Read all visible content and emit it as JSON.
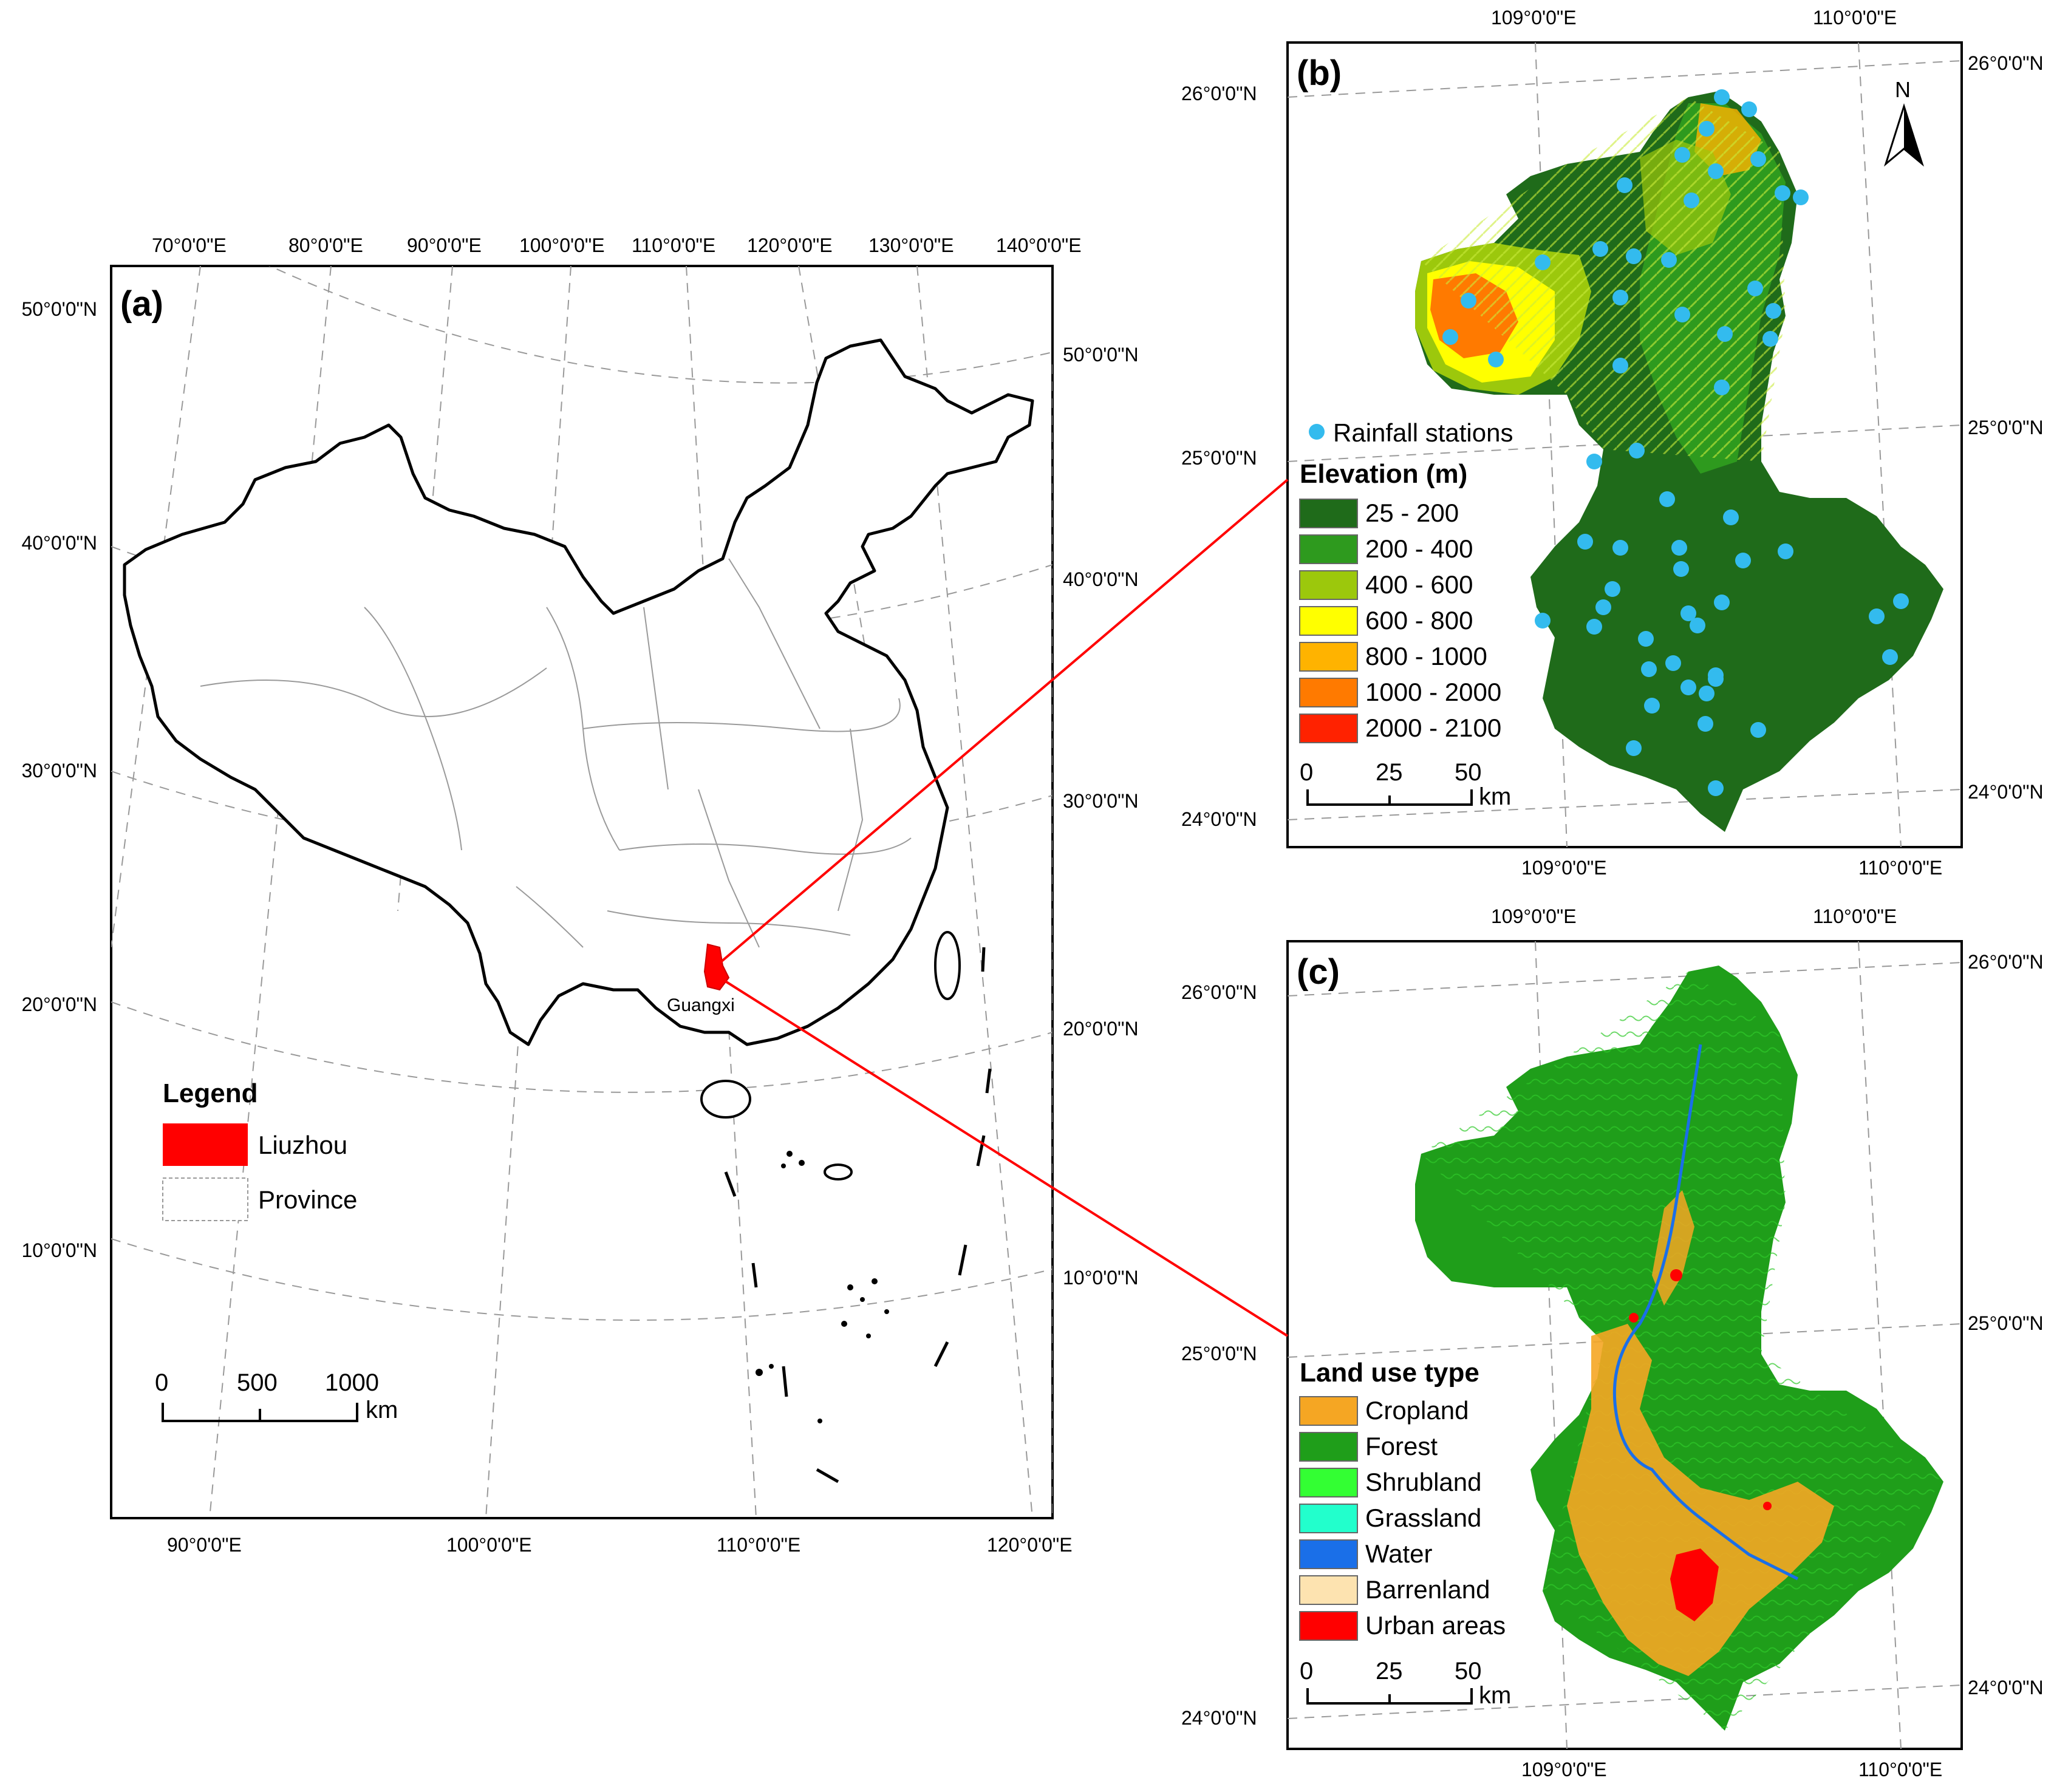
{
  "panel_a": {
    "letter": "(a)",
    "top_lon_labels": [
      "70°0'0\"E",
      "80°0'0\"E",
      "90°0'0\"E",
      "100°0'0\"E",
      "110°0'0\"E",
      "120°0'0\"E",
      "130°0'0\"E",
      "140°0'0\"E"
    ],
    "bottom_lon_labels": [
      "90°0'0\"E",
      "100°0'0\"E",
      "110°0'0\"E",
      "120°0'0\"E"
    ],
    "left_lat_labels": [
      "50°0'0\"N",
      "40°0'0\"N",
      "30°0'0\"N",
      "20°0'0\"N",
      "10°0'0\"N"
    ],
    "right_lat_labels": [
      "50°0'0\"N",
      "40°0'0\"N",
      "30°0'0\"N",
      "20°0'0\"N",
      "10°0'0\"N"
    ],
    "place_label": "Guangxi",
    "legend": {
      "title": "Legend",
      "items": [
        {
          "label": "Liuzhou",
          "color": "#ff0000"
        },
        {
          "label": "Province",
          "color": "#ffffff"
        }
      ]
    },
    "scalebar": {
      "ticks": [
        "0",
        "500",
        "1000"
      ],
      "unit": "km"
    }
  },
  "panel_b": {
    "letter": "(b)",
    "top_lon_labels": [
      "109°0'0\"E",
      "110°0'0\"E"
    ],
    "bottom_lon_labels": [
      "109°0'0\"E",
      "110°0'0\"E"
    ],
    "left_lat_labels": [
      "26°0'0\"N",
      "25°0'0\"N",
      "24°0'0\"N"
    ],
    "right_lat_labels": [
      "26°0'0\"N",
      "25°0'0\"N",
      "24°0'0\"N"
    ],
    "north_label": "N",
    "stations_label": "Rainfall stations",
    "station_color": "#33bbee",
    "legend": {
      "title": "Elevation (m)",
      "items": [
        {
          "label": "25 - 200",
          "color": "#1f6b1a"
        },
        {
          "label": "200 - 400",
          "color": "#2e9a1e"
        },
        {
          "label": "400 - 600",
          "color": "#9cc80c"
        },
        {
          "label": "600 - 800",
          "color": "#ffff00"
        },
        {
          "label": "800 - 1000",
          "color": "#ffb300"
        },
        {
          "label": "1000 - 2000",
          "color": "#ff7a00"
        },
        {
          "label": "2000 - 2100",
          "color": "#ff2200"
        }
      ]
    },
    "scalebar": {
      "ticks": [
        "0",
        "25",
        "50"
      ],
      "unit": "km"
    }
  },
  "panel_c": {
    "letter": "(c)",
    "top_lon_labels": [
      "109°0'0\"E",
      "110°0'0\"E"
    ],
    "bottom_lon_labels": [
      "109°0'0\"E",
      "110°0'0\"E"
    ],
    "left_lat_labels": [
      "26°0'0\"N",
      "25°0'0\"N",
      "24°0'0\"N"
    ],
    "right_lat_labels": [
      "26°0'0\"N",
      "25°0'0\"N",
      "24°0'0\"N"
    ],
    "legend": {
      "title": "Land use type",
      "items": [
        {
          "label": "Cropland",
          "color": "#f5a623"
        },
        {
          "label": "Forest",
          "color": "#1f9e1a"
        },
        {
          "label": "Shrubland",
          "color": "#33ff33"
        },
        {
          "label": "Grassland",
          "color": "#22ffcc"
        },
        {
          "label": "Water",
          "color": "#1a6fe8"
        },
        {
          "label": "Barrenland",
          "color": "#fde3b0"
        },
        {
          "label": "Urban areas",
          "color": "#ff0000"
        }
      ]
    },
    "scalebar": {
      "ticks": [
        "0",
        "25",
        "50"
      ],
      "unit": "km"
    }
  },
  "colors": {
    "link_line": "#ff0000",
    "frame": "#000000",
    "graticule": "#999999"
  }
}
